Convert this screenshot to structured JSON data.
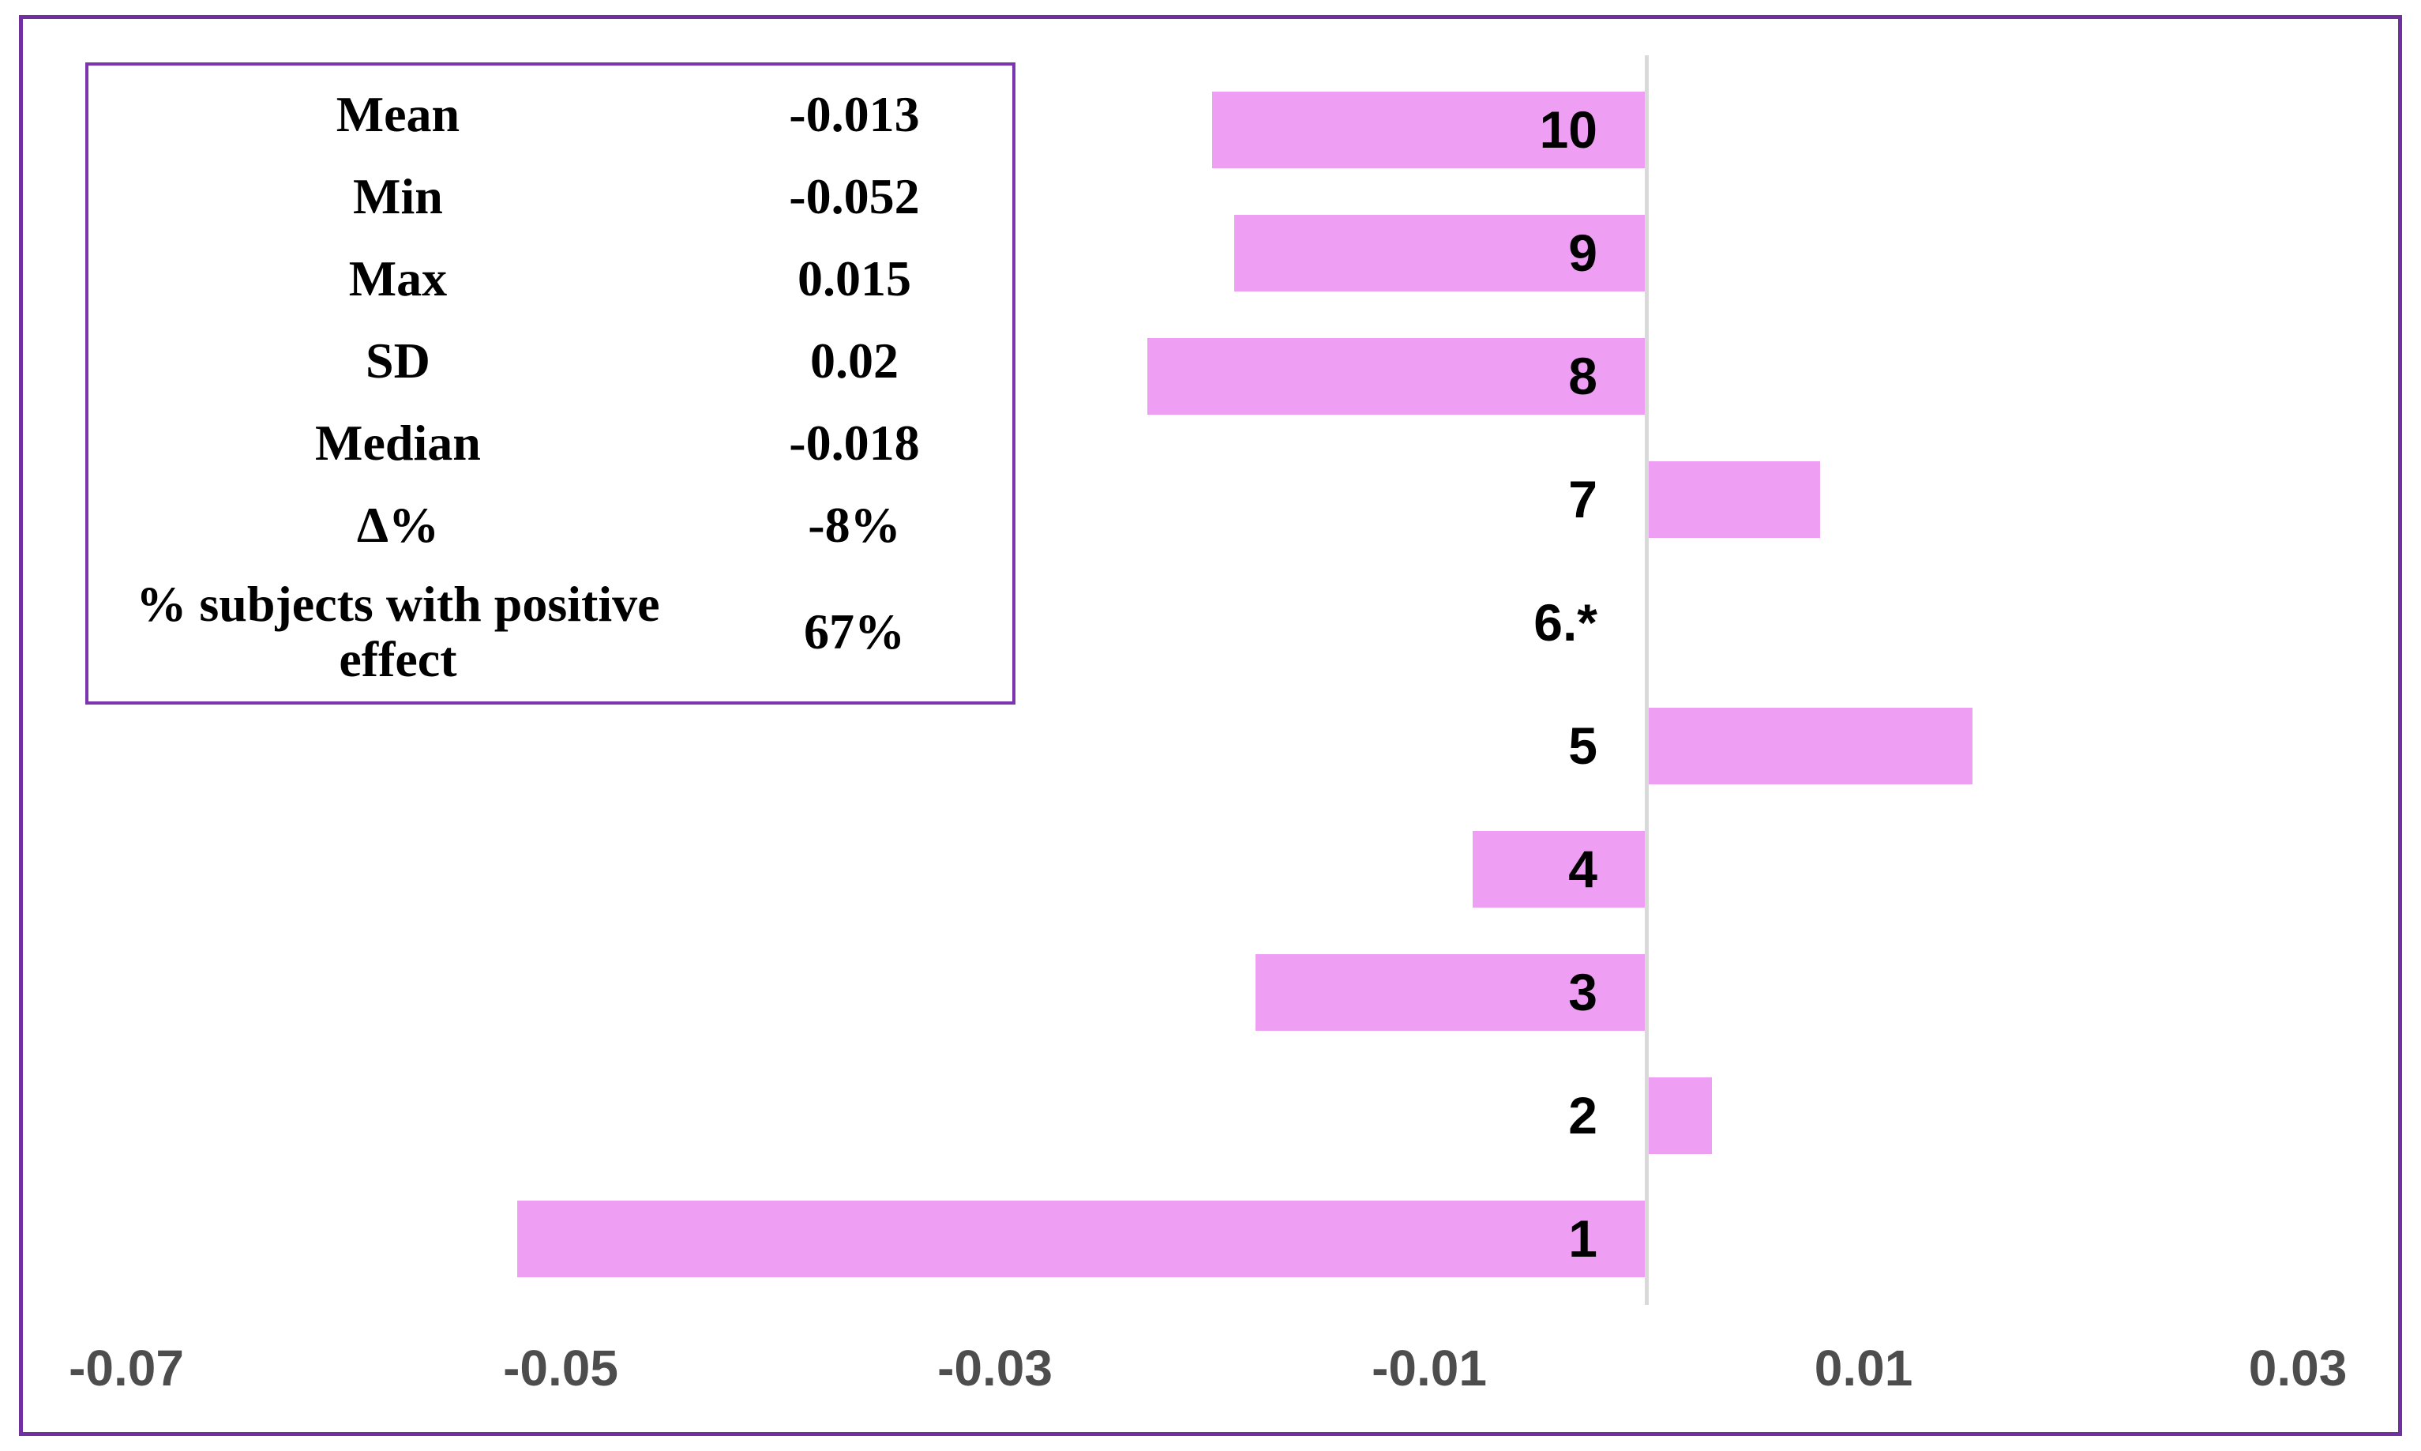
{
  "frame": {
    "border_color": "#7030A0"
  },
  "stats_panel": {
    "border_color": "#7B35AE",
    "rows": [
      {
        "label": "Mean",
        "value": "-0.013"
      },
      {
        "label": "Min",
        "value": "-0.052"
      },
      {
        "label": "Max",
        "value": "0.015"
      },
      {
        "label": "SD",
        "value": "0.02"
      },
      {
        "label": "Median",
        "value": "-0.018"
      },
      {
        "label": "Δ%",
        "value": "-8%"
      },
      {
        "label": "% subjects with positive effect",
        "value": "67%"
      }
    ]
  },
  "chart_data": {
    "type": "bar",
    "orientation": "horizontal",
    "title": "",
    "xlabel": "",
    "ylabel": "",
    "grid": false,
    "legend": false,
    "categories": [
      "10",
      "9",
      "8",
      "7",
      "6.*",
      "5",
      "4",
      "3",
      "2",
      "1"
    ],
    "values": [
      -0.02,
      -0.019,
      -0.023,
      0.008,
      null,
      0.015,
      -0.008,
      -0.018,
      0.003,
      -0.052
    ],
    "x_ticks": [
      -0.07,
      -0.05,
      -0.03,
      -0.01,
      0.01,
      0.03
    ],
    "x_tick_labels": [
      "-0.07",
      "-0.05",
      "-0.03",
      "-0.01",
      "0.01",
      "0.03"
    ],
    "xlim": [
      -0.07,
      0.03
    ],
    "bar_color": "#EF9FF3",
    "axis_line_color": "#D9D9D9",
    "tick_label_color": "#4D4D4D",
    "category_label_color": "#000000"
  }
}
